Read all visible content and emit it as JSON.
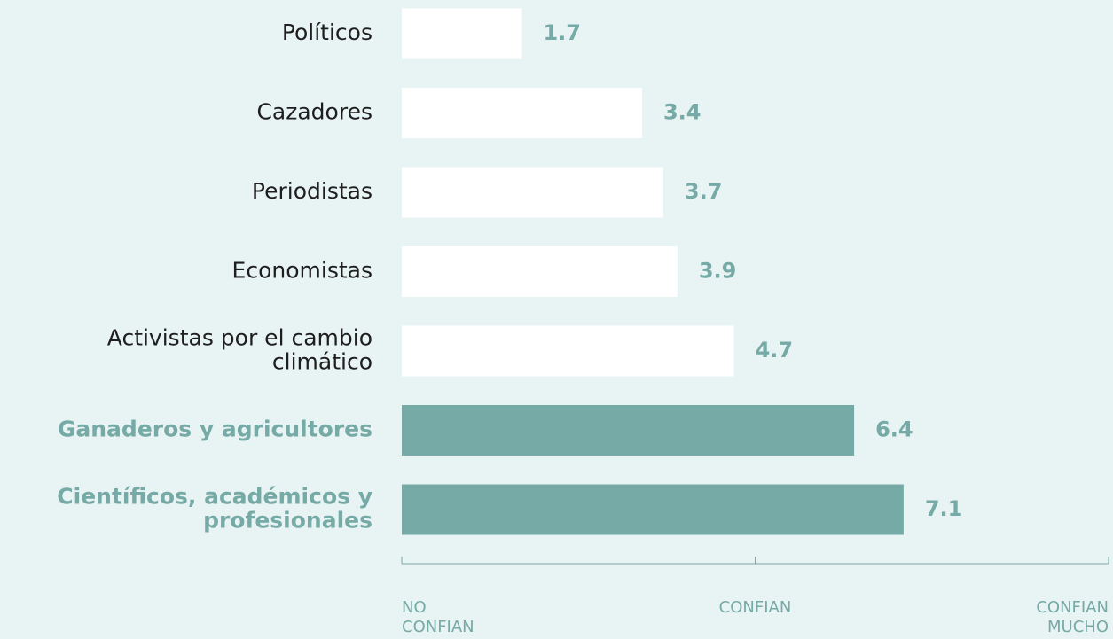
{
  "chart_data": {
    "type": "bar",
    "orientation": "horizontal",
    "categories": [
      "Políticos",
      "Cazadores",
      "Periodistas",
      "Economistas",
      "Activistas por el cambio\nclimático",
      "Ganaderos y agricultores",
      "Científicos, académicos y\nprofesionales"
    ],
    "values": [
      1.7,
      3.4,
      3.7,
      3.9,
      4.7,
      6.4,
      7.1
    ],
    "colors": [
      "#ffffff",
      "#ffffff",
      "#ffffff",
      "#ffffff",
      "#ffffff",
      "#76aaa6",
      "#76aaa6"
    ],
    "label_colors": [
      "#1e1e1e",
      "#1e1e1e",
      "#1e1e1e",
      "#1e1e1e",
      "#1e1e1e",
      "#76aaa6",
      "#76aaa6"
    ],
    "value_label_color": "#76aaa6",
    "xlim": [
      0,
      10
    ],
    "xticks": [
      {
        "value": 0,
        "label": "NO\nCONFIAN"
      },
      {
        "value": 5,
        "label": "CONFIAN"
      },
      {
        "value": 10,
        "label": "CONFIAN\nMUCHO"
      }
    ]
  }
}
